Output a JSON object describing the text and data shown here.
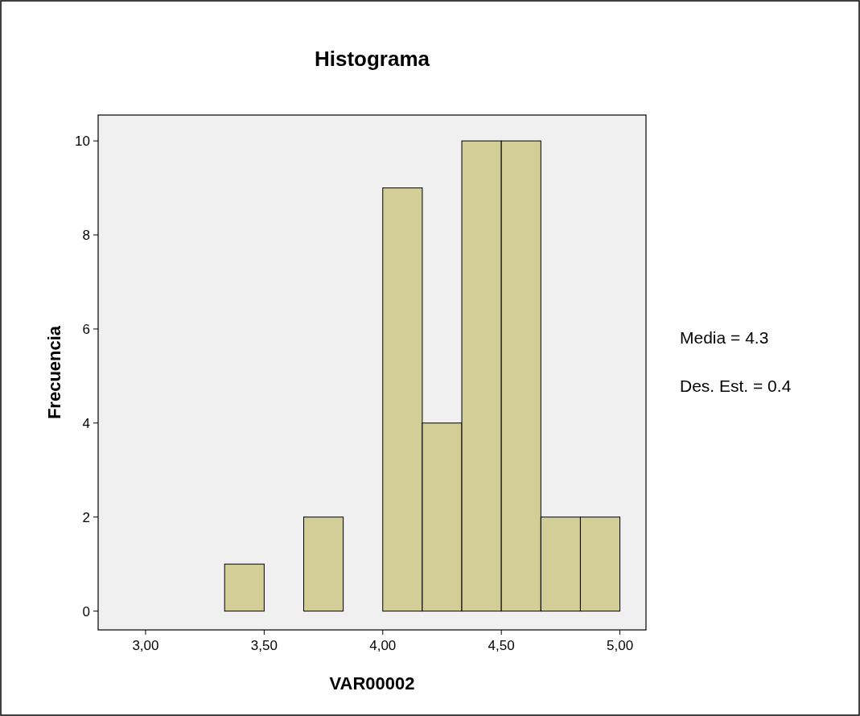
{
  "chart_data": {
    "type": "histogram",
    "title": "Histograma",
    "xlabel": "VAR00002",
    "ylabel": "Frecuencia",
    "bins": [
      3.3333,
      3.5,
      3.6667,
      3.8333,
      4.0,
      4.1667,
      4.3333,
      4.5,
      4.6667,
      4.8333,
      5.0
    ],
    "values": [
      1,
      0,
      2,
      0,
      9,
      4,
      10,
      10,
      2,
      2
    ],
    "color": "#d3ce98",
    "xlim": [
      2.8,
      5.11
    ],
    "xticks": [
      {
        "value": 3,
        "label": "3,00"
      },
      {
        "value": 3.5,
        "label": "3,50"
      },
      {
        "value": 4,
        "label": "4,00"
      },
      {
        "value": 4.5,
        "label": "4,50"
      },
      {
        "value": 5,
        "label": "5,00"
      }
    ],
    "ylim": [
      -0.4,
      10.55
    ],
    "yticks": [
      0,
      2,
      4,
      6,
      8,
      10
    ],
    "grid": false,
    "annotations": [
      "Media = 4.3",
      "Des. Est. = 0.4"
    ]
  }
}
